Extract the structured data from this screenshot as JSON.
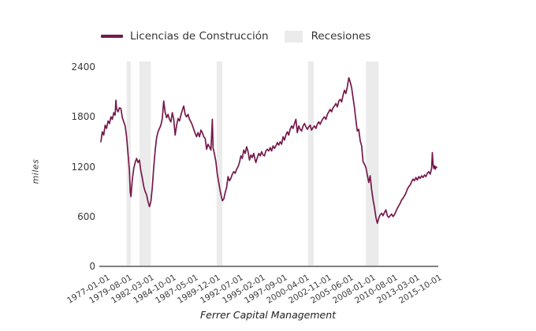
{
  "footer": "Ferrer Capital Management",
  "legend": {
    "items": [
      {
        "label": "Licencias de Construcción",
        "type": "line",
        "color": "#75194b"
      },
      {
        "label": "Recesiones",
        "type": "band",
        "color": "#ebebeb"
      }
    ]
  },
  "chart_data": {
    "type": "line",
    "title": "",
    "xlabel": "",
    "ylabel": "miles",
    "ylim": [
      0,
      2400
    ],
    "yticks": [
      0,
      600,
      1200,
      1800,
      2400
    ],
    "grid": false,
    "legend_position": "top",
    "line_color": "#75194b",
    "recession_fill": "#ebebeb",
    "axis_color": "#808080",
    "x_unit": "months since 1977-01-01",
    "xtick_step_months": 31,
    "xtick_labels": [
      "1977-01-01",
      "1979-08-01",
      "1982-03-01",
      "1984-10-01",
      "1987-05-01",
      "1989-12-01",
      "1992-07-01",
      "1995-02-01",
      "1997-09-01",
      "2000-04-01",
      "2002-11-01",
      "2005-06-01",
      "2008-01-01",
      "2010-08-01",
      "2013-03-01",
      "2015-10-01"
    ],
    "recessions": [
      {
        "start": "1980-01",
        "end": "1980-07",
        "start_month": 36,
        "end_month": 42
      },
      {
        "start": "1981-07",
        "end": "1982-11",
        "start_month": 54,
        "end_month": 70
      },
      {
        "start": "1990-07",
        "end": "1991-03",
        "start_month": 162,
        "end_month": 170
      },
      {
        "start": "2001-03",
        "end": "2001-11",
        "start_month": 290,
        "end_month": 298
      },
      {
        "start": "2007-12",
        "end": "2009-06",
        "start_month": 371,
        "end_month": 389
      }
    ],
    "series": [
      {
        "name": "Licencias de Construcción",
        "color": "#75194b",
        "points": [
          [
            0,
            1500
          ],
          [
            2,
            1620
          ],
          [
            4,
            1580
          ],
          [
            6,
            1700
          ],
          [
            8,
            1660
          ],
          [
            10,
            1750
          ],
          [
            12,
            1720
          ],
          [
            14,
            1800
          ],
          [
            16,
            1770
          ],
          [
            18,
            1850
          ],
          [
            20,
            1820
          ],
          [
            21,
            2000
          ],
          [
            22,
            1900
          ],
          [
            24,
            1860
          ],
          [
            26,
            1910
          ],
          [
            28,
            1900
          ],
          [
            30,
            1790
          ],
          [
            32,
            1740
          ],
          [
            34,
            1690
          ],
          [
            36,
            1560
          ],
          [
            38,
            1360
          ],
          [
            40,
            1150
          ],
          [
            41,
            900
          ],
          [
            42,
            840
          ],
          [
            44,
            1050
          ],
          [
            46,
            1180
          ],
          [
            48,
            1250
          ],
          [
            50,
            1300
          ],
          [
            52,
            1250
          ],
          [
            54,
            1280
          ],
          [
            56,
            1150
          ],
          [
            58,
            1060
          ],
          [
            60,
            960
          ],
          [
            62,
            900
          ],
          [
            64,
            860
          ],
          [
            66,
            780
          ],
          [
            68,
            720
          ],
          [
            70,
            780
          ],
          [
            72,
            950
          ],
          [
            74,
            1200
          ],
          [
            76,
            1400
          ],
          [
            78,
            1550
          ],
          [
            80,
            1620
          ],
          [
            82,
            1660
          ],
          [
            84,
            1700
          ],
          [
            86,
            1780
          ],
          [
            88,
            1990
          ],
          [
            90,
            1850
          ],
          [
            92,
            1790
          ],
          [
            94,
            1830
          ],
          [
            96,
            1770
          ],
          [
            98,
            1740
          ],
          [
            100,
            1850
          ],
          [
            102,
            1770
          ],
          [
            104,
            1580
          ],
          [
            106,
            1700
          ],
          [
            108,
            1780
          ],
          [
            110,
            1750
          ],
          [
            112,
            1820
          ],
          [
            114,
            1880
          ],
          [
            116,
            1930
          ],
          [
            118,
            1830
          ],
          [
            120,
            1800
          ],
          [
            122,
            1830
          ],
          [
            124,
            1770
          ],
          [
            126,
            1740
          ],
          [
            128,
            1700
          ],
          [
            130,
            1650
          ],
          [
            132,
            1600
          ],
          [
            134,
            1560
          ],
          [
            136,
            1610
          ],
          [
            138,
            1560
          ],
          [
            140,
            1640
          ],
          [
            142,
            1610
          ],
          [
            144,
            1560
          ],
          [
            146,
            1540
          ],
          [
            148,
            1410
          ],
          [
            150,
            1470
          ],
          [
            152,
            1440
          ],
          [
            154,
            1400
          ],
          [
            156,
            1770
          ],
          [
            157,
            1430
          ],
          [
            159,
            1350
          ],
          [
            161,
            1260
          ],
          [
            163,
            1110
          ],
          [
            165,
            1010
          ],
          [
            167,
            910
          ],
          [
            169,
            830
          ],
          [
            170,
            790
          ],
          [
            172,
            810
          ],
          [
            174,
            890
          ],
          [
            176,
            950
          ],
          [
            178,
            1080
          ],
          [
            180,
            1030
          ],
          [
            182,
            1060
          ],
          [
            184,
            1110
          ],
          [
            186,
            1140
          ],
          [
            188,
            1120
          ],
          [
            190,
            1170
          ],
          [
            192,
            1200
          ],
          [
            194,
            1250
          ],
          [
            196,
            1330
          ],
          [
            198,
            1300
          ],
          [
            200,
            1400
          ],
          [
            202,
            1360
          ],
          [
            204,
            1440
          ],
          [
            206,
            1380
          ],
          [
            208,
            1280
          ],
          [
            210,
            1340
          ],
          [
            212,
            1310
          ],
          [
            214,
            1360
          ],
          [
            216,
            1280
          ],
          [
            217,
            1250
          ],
          [
            219,
            1310
          ],
          [
            221,
            1360
          ],
          [
            223,
            1330
          ],
          [
            225,
            1380
          ],
          [
            227,
            1340
          ],
          [
            229,
            1330
          ],
          [
            231,
            1390
          ],
          [
            233,
            1410
          ],
          [
            235,
            1390
          ],
          [
            237,
            1430
          ],
          [
            239,
            1390
          ],
          [
            241,
            1450
          ],
          [
            243,
            1420
          ],
          [
            245,
            1450
          ],
          [
            247,
            1490
          ],
          [
            249,
            1460
          ],
          [
            251,
            1500
          ],
          [
            253,
            1470
          ],
          [
            255,
            1560
          ],
          [
            257,
            1520
          ],
          [
            259,
            1580
          ],
          [
            261,
            1620
          ],
          [
            263,
            1580
          ],
          [
            265,
            1650
          ],
          [
            267,
            1690
          ],
          [
            269,
            1660
          ],
          [
            271,
            1720
          ],
          [
            273,
            1770
          ],
          [
            275,
            1610
          ],
          [
            277,
            1690
          ],
          [
            279,
            1650
          ],
          [
            281,
            1630
          ],
          [
            283,
            1690
          ],
          [
            285,
            1720
          ],
          [
            287,
            1680
          ],
          [
            289,
            1650
          ],
          [
            291,
            1680
          ],
          [
            293,
            1700
          ],
          [
            295,
            1640
          ],
          [
            297,
            1670
          ],
          [
            299,
            1690
          ],
          [
            301,
            1660
          ],
          [
            303,
            1710
          ],
          [
            305,
            1740
          ],
          [
            307,
            1710
          ],
          [
            309,
            1750
          ],
          [
            311,
            1780
          ],
          [
            313,
            1800
          ],
          [
            315,
            1770
          ],
          [
            317,
            1830
          ],
          [
            319,
            1860
          ],
          [
            321,
            1890
          ],
          [
            323,
            1860
          ],
          [
            325,
            1910
          ],
          [
            327,
            1930
          ],
          [
            329,
            1960
          ],
          [
            331,
            1920
          ],
          [
            333,
            1990
          ],
          [
            335,
            2010
          ],
          [
            337,
            1980
          ],
          [
            339,
            2060
          ],
          [
            341,
            2120
          ],
          [
            343,
            2080
          ],
          [
            345,
            2160
          ],
          [
            347,
            2270
          ],
          [
            349,
            2220
          ],
          [
            351,
            2150
          ],
          [
            353,
            2030
          ],
          [
            355,
            1910
          ],
          [
            357,
            1760
          ],
          [
            359,
            1630
          ],
          [
            361,
            1650
          ],
          [
            363,
            1510
          ],
          [
            365,
            1450
          ],
          [
            367,
            1260
          ],
          [
            369,
            1230
          ],
          [
            371,
            1190
          ],
          [
            373,
            1100
          ],
          [
            375,
            1010
          ],
          [
            377,
            1090
          ],
          [
            379,
            930
          ],
          [
            381,
            800
          ],
          [
            383,
            710
          ],
          [
            385,
            590
          ],
          [
            387,
            520
          ],
          [
            389,
            580
          ],
          [
            391,
            620
          ],
          [
            393,
            640
          ],
          [
            395,
            610
          ],
          [
            397,
            650
          ],
          [
            399,
            680
          ],
          [
            401,
            610
          ],
          [
            403,
            590
          ],
          [
            405,
            610
          ],
          [
            407,
            630
          ],
          [
            409,
            600
          ],
          [
            411,
            620
          ],
          [
            413,
            660
          ],
          [
            415,
            700
          ],
          [
            417,
            730
          ],
          [
            419,
            760
          ],
          [
            421,
            800
          ],
          [
            423,
            820
          ],
          [
            425,
            850
          ],
          [
            427,
            880
          ],
          [
            429,
            930
          ],
          [
            431,
            960
          ],
          [
            433,
            980
          ],
          [
            435,
            1020
          ],
          [
            437,
            1050
          ],
          [
            439,
            1030
          ],
          [
            441,
            1070
          ],
          [
            443,
            1040
          ],
          [
            445,
            1080
          ],
          [
            447,
            1060
          ],
          [
            449,
            1090
          ],
          [
            451,
            1070
          ],
          [
            453,
            1100
          ],
          [
            455,
            1080
          ],
          [
            457,
            1120
          ],
          [
            459,
            1140
          ],
          [
            461,
            1110
          ],
          [
            463,
            1180
          ],
          [
            464,
            1370
          ],
          [
            465,
            1230
          ],
          [
            466,
            1180
          ],
          [
            467,
            1210
          ],
          [
            468,
            1170
          ],
          [
            469,
            1200
          ],
          [
            470,
            1190
          ]
        ]
      }
    ]
  }
}
